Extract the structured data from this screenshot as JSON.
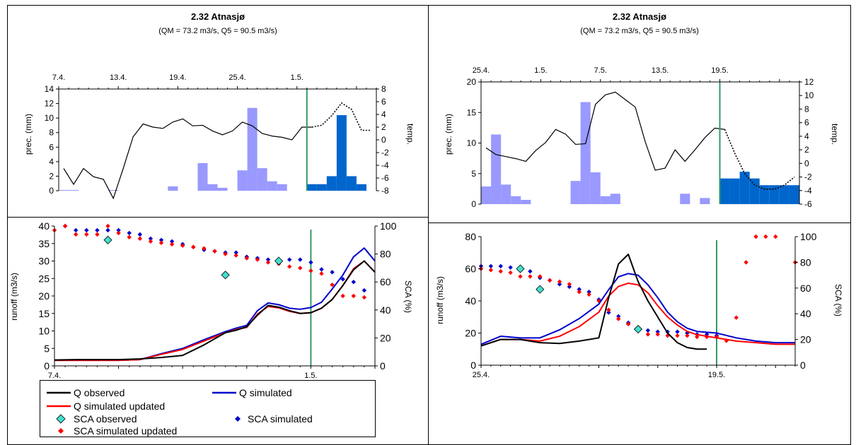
{
  "chart_data": [
    {
      "type": "bar",
      "title": "2.32 Atnasjø",
      "subtitle": "(QM = 73.2 m3/s, Q5 = 90.5 m3/s)",
      "ylabel": "prec. (mm)",
      "y2label": "temp.",
      "top_ticks": [
        "7.4.",
        "13.4.",
        "19.4.",
        "25.4.",
        "1.5."
      ],
      "top_tick_days": [
        0,
        6,
        12,
        18,
        24
      ],
      "ylim": [
        0,
        14
      ],
      "yticks": [
        0,
        2,
        4,
        6,
        8,
        10,
        12,
        14
      ],
      "y2lim": [
        -8,
        8
      ],
      "y2ticks": [
        -8,
        -6,
        -4,
        -2,
        0,
        2,
        4,
        6,
        8
      ],
      "xlim": [
        0,
        32
      ],
      "forecast_start": 25,
      "colors": {
        "observed_bar": "#9999ff",
        "forecast_bar": "#0066cc",
        "temp": "#000000",
        "divider": "#339966"
      },
      "precip_observed": [
        0.1,
        0.1,
        0,
        0,
        0,
        0.1,
        0,
        0,
        0,
        0,
        0,
        0.6,
        0,
        0,
        3.8,
        0.9,
        0.4,
        0,
        2.8,
        11.4,
        3.1,
        1.3,
        0.9,
        0,
        0
      ],
      "precip_forecast": [
        0.9,
        0.9,
        2.0,
        10.4,
        2.0,
        0.9
      ],
      "temp_observed": [
        -4.5,
        -7.0,
        -4.5,
        -5.8,
        -6.2,
        -9.2,
        -4.5,
        0.5,
        2.5,
        2.0,
        1.8,
        2.8,
        3.3,
        2.2,
        2.3,
        1.4,
        0.8,
        1.4,
        2.8,
        2.2,
        1.0,
        0.6,
        0.4,
        0.0,
        2.0,
        2.0
      ],
      "temp_forecast": [
        2.0,
        2.3,
        3.8,
        5.8,
        4.8,
        1.5,
        1.5
      ]
    },
    {
      "type": "bar",
      "title": "2.32 Atnasjø",
      "subtitle": "(QM = 73.2 m3/s, Q5 = 90.5 m3/s)",
      "ylabel": "prec. (mm)",
      "y2label": "temp.",
      "top_ticks": [
        "25.4.",
        "1.5.",
        "7.5.",
        "13.5.",
        "19.5."
      ],
      "top_tick_days": [
        0,
        6,
        12,
        18,
        24
      ],
      "ylim": [
        0,
        20
      ],
      "yticks": [
        0,
        5,
        10,
        15,
        20
      ],
      "y2lim": [
        -6,
        12
      ],
      "y2ticks": [
        -6,
        -4,
        -2,
        0,
        2,
        4,
        6,
        8,
        10,
        12
      ],
      "xlim": [
        0,
        32
      ],
      "forecast_start": 24,
      "colors": {
        "observed_bar": "#9999ff",
        "forecast_bar": "#0066cc",
        "temp": "#000000",
        "divider": "#339966"
      },
      "precip_observed": [
        2.9,
        11.4,
        3.2,
        1.3,
        0.7,
        0,
        0,
        0,
        0,
        3.8,
        16.7,
        5.2,
        1.3,
        1.7,
        0,
        0,
        0,
        0,
        0,
        0,
        1.7,
        0,
        1.0,
        0
      ],
      "precip_forecast": [
        4.2,
        4.2,
        5.3,
        4.2,
        3.1,
        3.1,
        3.1,
        3.1
      ],
      "temp_observed": [
        2.3,
        1.3,
        1.0,
        0.7,
        0.3,
        1.9,
        3.1,
        5.0,
        4.3,
        2.8,
        2.9,
        8.7,
        10.1,
        10.5,
        9.4,
        8.3,
        3.2,
        -1.0,
        -0.7,
        2.0,
        0.3,
        2.0,
        3.8,
        5.2,
        5.0
      ],
      "temp_forecast": [
        5.0,
        1.5,
        -1.5,
        -3.2,
        -3.8,
        -3.8,
        -3.2,
        -2.0
      ]
    },
    {
      "type": "line",
      "ylabel": "runoff (m3/s)",
      "y2label": "SCA (%)",
      "xticks": [
        "7.4.",
        "1.5."
      ],
      "xtick_days": [
        0,
        24
      ],
      "ylim": [
        0,
        40
      ],
      "yticks": [
        0,
        5,
        10,
        15,
        20,
        25,
        30,
        35,
        40
      ],
      "y2lim": [
        0,
        100
      ],
      "y2ticks": [
        0,
        20,
        40,
        60,
        80,
        100
      ],
      "xlim": [
        0,
        30
      ],
      "forecast_start": 24,
      "series": [
        {
          "key": "q_obs",
          "color": "#000000",
          "x": [
            0,
            2,
            4,
            6,
            8,
            10,
            12,
            14,
            16,
            17,
            18,
            19,
            20,
            21,
            22,
            23,
            24,
            25,
            26,
            27,
            28,
            29,
            30
          ],
          "y": [
            1.7,
            1.8,
            1.8,
            1.8,
            2.0,
            2.4,
            3.0,
            6.0,
            9.5,
            10.2,
            11.2,
            14.5,
            17.3,
            16.8,
            15.8,
            15.0,
            15.2,
            16.5,
            19.0,
            23.0,
            27.5,
            30.0,
            26.8
          ]
        },
        {
          "key": "q_sim",
          "color": "#0000cc",
          "x": [
            0,
            2,
            4,
            6,
            8,
            10,
            12,
            14,
            16,
            17,
            18,
            19,
            20,
            21,
            22,
            23,
            24,
            25,
            26,
            27,
            28,
            29,
            30
          ],
          "y": [
            1.6,
            1.6,
            1.6,
            1.6,
            1.8,
            3.5,
            5.0,
            7.5,
            9.8,
            10.8,
            11.6,
            15.8,
            18.0,
            17.5,
            16.5,
            16.2,
            16.7,
            18.2,
            22.0,
            26.0,
            31.2,
            33.7,
            30.0
          ]
        },
        {
          "key": "q_sim_upd",
          "color": "#ff0000",
          "x": [
            0,
            2,
            4,
            6,
            8,
            10,
            12,
            14,
            16,
            17,
            18,
            19,
            20,
            21,
            22,
            23,
            24,
            25,
            26,
            27,
            28,
            29,
            30
          ],
          "y": [
            1.6,
            1.6,
            1.6,
            1.6,
            1.8,
            3.3,
            4.7,
            7.1,
            9.5,
            10.4,
            11.0,
            14.8,
            17.0,
            16.6,
            15.6,
            15.0,
            15.2,
            16.5,
            19.0,
            23.0,
            27.8,
            30.0,
            26.8
          ]
        }
      ],
      "sca_observed": {
        "color": "#40e0d0",
        "x": [
          5,
          16,
          21
        ],
        "y": [
          90,
          65,
          75
        ]
      },
      "sca_simulated": {
        "color": "#0000cc",
        "x": [
          1,
          2,
          3,
          4,
          5,
          6,
          7,
          8,
          9,
          10,
          11,
          12,
          13,
          14,
          15,
          16,
          17,
          18,
          19,
          20,
          21,
          22,
          23,
          24,
          25,
          26,
          27,
          28,
          29
        ],
        "y": [
          100,
          97,
          97,
          97,
          97,
          97,
          95,
          94,
          91,
          90,
          89,
          87,
          85,
          83,
          82,
          81,
          81,
          78,
          77,
          76,
          76,
          76,
          76,
          74,
          69,
          67,
          62,
          60,
          54
        ]
      },
      "sca_sim_updated": {
        "color": "#ff0000",
        "x": [
          0,
          1,
          2,
          3,
          4,
          5,
          6,
          7,
          8,
          9,
          10,
          11,
          12,
          13,
          14,
          15,
          16,
          17,
          18,
          19,
          20,
          21,
          22,
          23,
          24,
          25,
          26,
          27,
          28,
          29
        ],
        "y": [
          97,
          100,
          94,
          94,
          94,
          100,
          95,
          92,
          91,
          89,
          88,
          87,
          86,
          85,
          84,
          82,
          80,
          79,
          77,
          76,
          74,
          73,
          71,
          70,
          68,
          66,
          58,
          50,
          50,
          49
        ]
      }
    },
    {
      "type": "line",
      "ylabel": "runoff (m3/s)",
      "y2label": "SCA (%)",
      "xticks": [
        "25.4.",
        "19.5."
      ],
      "xtick_days": [
        0,
        24
      ],
      "ylim": [
        0,
        80
      ],
      "yticks": [
        0,
        20,
        40,
        60,
        80
      ],
      "y2lim": [
        0,
        100
      ],
      "y2ticks": [
        0,
        20,
        40,
        60,
        80,
        100
      ],
      "xlim": [
        0,
        32
      ],
      "forecast_start": 24,
      "series": [
        {
          "key": "q_obs",
          "color": "#000000",
          "x": [
            0,
            2,
            4,
            6,
            8,
            10,
            12,
            13,
            14,
            15,
            16,
            17,
            18,
            19,
            20,
            21,
            22,
            23
          ],
          "y": [
            12,
            16,
            16,
            14,
            13.5,
            15,
            17,
            42,
            63,
            69,
            52,
            40,
            30,
            20,
            14,
            11,
            10,
            10
          ]
        },
        {
          "key": "q_sim",
          "color": "#0000cc",
          "x": [
            0,
            2,
            4,
            6,
            8,
            10,
            12,
            13,
            14,
            15,
            16,
            17,
            18,
            19,
            20,
            21,
            22,
            24,
            26,
            28,
            30,
            32
          ],
          "y": [
            13,
            18,
            17,
            17,
            22,
            29,
            38,
            47,
            55,
            57,
            56,
            50,
            42,
            33,
            27,
            23,
            21,
            20,
            17,
            15,
            14,
            14
          ]
        },
        {
          "key": "q_sim_upd",
          "color": "#ff0000",
          "x": [
            0,
            2,
            4,
            6,
            8,
            10,
            12,
            13,
            14,
            15,
            16,
            17,
            18,
            19,
            20,
            21,
            22,
            24,
            26,
            28,
            30,
            32
          ],
          "y": [
            12,
            16,
            16,
            15,
            18,
            24,
            33,
            43,
            49,
            51,
            50,
            45,
            37,
            30,
            25,
            21,
            19,
            17,
            15,
            14,
            13,
            13
          ]
        }
      ],
      "sca_observed": {
        "color": "#40e0d0",
        "x": [
          4,
          6,
          16
        ],
        "y": [
          75,
          59,
          28
        ]
      },
      "sca_simulated": {
        "color": "#0000cc",
        "x": [
          0,
          1,
          2,
          3,
          4,
          5,
          6,
          7,
          8,
          9,
          10,
          11,
          12,
          13,
          14,
          15,
          16,
          17,
          18,
          19,
          20,
          21,
          22,
          23,
          24
        ],
        "y": [
          77,
          77,
          77,
          76,
          75,
          73,
          68,
          66,
          63,
          61,
          59,
          57,
          51,
          41,
          38,
          33,
          28,
          27,
          26,
          26,
          26,
          25,
          24,
          24,
          23
        ]
      },
      "sca_sim_updated": {
        "color": "#ff0000",
        "x": [
          0,
          1,
          2,
          3,
          4,
          5,
          6,
          7,
          8,
          9,
          10,
          11,
          12,
          13,
          14,
          15,
          16,
          17,
          18,
          19,
          20,
          21,
          22,
          23,
          24,
          25,
          26,
          27,
          28,
          29,
          30,
          32
        ],
        "y": [
          75,
          74,
          73,
          72,
          69,
          69,
          69,
          66,
          65,
          63,
          57,
          55,
          50,
          43,
          36,
          32,
          28,
          24,
          24,
          23,
          23,
          23,
          22,
          22,
          22,
          19,
          37,
          80,
          100,
          100,
          100,
          80
        ]
      }
    }
  ],
  "legend": {
    "q_obs": "Q observed",
    "q_sim": "Q simulated",
    "q_sim_upd": "Q simulated updated",
    "sca_obs": "SCA observed",
    "sca_sim": "SCA simulated",
    "sca_sim_upd": "SCA simulated updated"
  }
}
